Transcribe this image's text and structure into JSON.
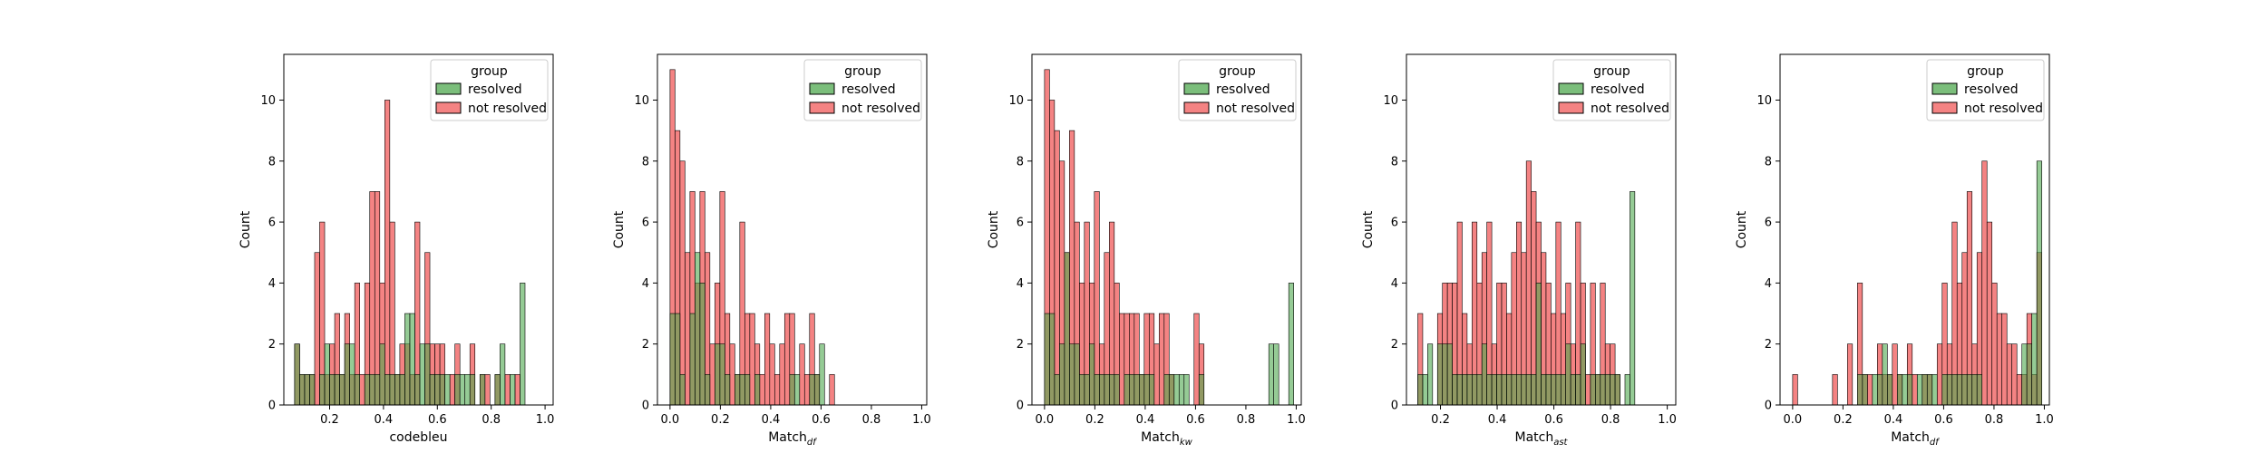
{
  "figure": {
    "legend_title": "group",
    "legend_entries": [
      "resolved",
      "not resolved"
    ],
    "colors": {
      "resolved": "#4fa84f",
      "not_resolved": "#f05a5a",
      "overlap": "#6b6a1c"
    }
  },
  "chart_data": [
    {
      "type": "bar",
      "xlabel": "codebleu",
      "ylabel": "Count",
      "xlim": [
        0.03,
        1.03
      ],
      "ylim": [
        0,
        11.5
      ],
      "xticks": [
        "0.2",
        "0.4",
        "0.6",
        "0.8",
        "1.0"
      ],
      "xtick_values": [
        0.2,
        0.4,
        0.6,
        0.8,
        1.0
      ],
      "yticks": [
        "0",
        "2",
        "4",
        "6",
        "8",
        "10"
      ],
      "bin_start": 0.07,
      "bin_width": 0.0186,
      "series": [
        {
          "name": "resolved",
          "values": [
            2,
            1,
            1,
            1,
            0,
            1,
            2,
            1,
            1,
            1,
            2,
            2,
            1,
            0,
            1,
            1,
            1,
            2,
            1,
            1,
            1,
            1,
            3,
            3,
            1,
            2,
            2,
            1,
            1,
            1,
            1,
            0,
            1,
            1,
            1,
            1,
            0,
            1,
            0,
            0,
            1,
            2,
            0,
            1,
            0,
            4,
            0,
            0
          ]
        },
        {
          "name": "not resolved",
          "values": [
            2,
            1,
            1,
            1,
            5,
            6,
            1,
            2,
            3,
            1,
            3,
            1,
            4,
            1,
            4,
            7,
            7,
            4,
            10,
            6,
            1,
            2,
            2,
            1,
            6,
            0,
            5,
            2,
            2,
            2,
            0,
            1,
            2,
            0,
            0,
            2,
            0,
            1,
            1,
            0,
            1,
            0,
            1,
            0,
            1,
            0,
            0,
            0
          ]
        }
      ]
    },
    {
      "type": "bar",
      "xlabel": "Match_df",
      "ylabel": "Count",
      "xlim": [
        -0.05,
        1.02
      ],
      "ylim": [
        0,
        11.5
      ],
      "xticks": [
        "0.0",
        "0.2",
        "0.4",
        "0.6",
        "0.8",
        "1.0"
      ],
      "xtick_values": [
        0.0,
        0.2,
        0.4,
        0.6,
        0.8,
        1.0
      ],
      "yticks": [
        "0",
        "2",
        "4",
        "6",
        "8",
        "10"
      ],
      "bin_start": 0.0,
      "bin_width": 0.0198,
      "series": [
        {
          "name": "resolved",
          "values": [
            3,
            3,
            1,
            0,
            3,
            5,
            4,
            1,
            0,
            2,
            2,
            1,
            0,
            1,
            1,
            1,
            0,
            1,
            0,
            0,
            0,
            0,
            0,
            0,
            1,
            1,
            0,
            0,
            1,
            1,
            2,
            0,
            0,
            0,
            0,
            0,
            0,
            0,
            0,
            0,
            0,
            0,
            0,
            0,
            0,
            0,
            0,
            0,
            0,
            0
          ]
        },
        {
          "name": "not resolved",
          "values": [
            11,
            9,
            8,
            5,
            7,
            4,
            7,
            5,
            2,
            4,
            7,
            3,
            2,
            1,
            6,
            3,
            3,
            2,
            1,
            3,
            2,
            1,
            2,
            3,
            3,
            0,
            2,
            1,
            3,
            1,
            0,
            0,
            1,
            0,
            0,
            0,
            0,
            0,
            0,
            0,
            0,
            0,
            0,
            0,
            0,
            0,
            0,
            0,
            0,
            0
          ]
        }
      ]
    },
    {
      "type": "bar",
      "xlabel": "Match_kw",
      "ylabel": "Count",
      "xlim": [
        -0.05,
        1.02
      ],
      "ylim": [
        0,
        11.5
      ],
      "xticks": [
        "0.0",
        "0.2",
        "0.4",
        "0.6",
        "0.8",
        "1.0"
      ],
      "xtick_values": [
        0.0,
        0.2,
        0.4,
        0.6,
        0.8,
        1.0
      ],
      "yticks": [
        "0",
        "2",
        "4",
        "6",
        "8",
        "10"
      ],
      "bin_start": 0.0,
      "bin_width": 0.0198,
      "series": [
        {
          "name": "resolved",
          "values": [
            3,
            3,
            1,
            2,
            5,
            2,
            2,
            1,
            1,
            2,
            1,
            1,
            1,
            1,
            1,
            0,
            1,
            1,
            1,
            1,
            1,
            1,
            0,
            0,
            1,
            1,
            1,
            1,
            1,
            0,
            0,
            1,
            0,
            0,
            0,
            0,
            0,
            0,
            0,
            0,
            0,
            0,
            0,
            0,
            0,
            2,
            2,
            0,
            0,
            4
          ]
        },
        {
          "name": "not resolved",
          "values": [
            11,
            10,
            9,
            8,
            5,
            9,
            6,
            4,
            6,
            4,
            7,
            2,
            5,
            6,
            4,
            3,
            3,
            3,
            3,
            1,
            3,
            3,
            2,
            3,
            3,
            1,
            0,
            0,
            0,
            0,
            3,
            2,
            0,
            0,
            0,
            0,
            0,
            0,
            0,
            0,
            0,
            0,
            0,
            0,
            0,
            0,
            0,
            0,
            0,
            0
          ]
        }
      ]
    },
    {
      "type": "bar",
      "xlabel": "Match_ast",
      "ylabel": "Count",
      "xlim": [
        0.08,
        1.03
      ],
      "ylim": [
        0,
        11.5
      ],
      "xticks": [
        "0.2",
        "0.4",
        "0.6",
        "0.8",
        "1.0"
      ],
      "xtick_values": [
        0.2,
        0.4,
        0.6,
        0.8,
        1.0
      ],
      "yticks": [
        "0",
        "2",
        "4",
        "6",
        "8",
        "10"
      ],
      "bin_start": 0.12,
      "bin_width": 0.0174,
      "series": [
        {
          "name": "resolved",
          "values": [
            1,
            1,
            2,
            0,
            2,
            2,
            2,
            1,
            1,
            1,
            1,
            1,
            1,
            2,
            1,
            1,
            1,
            1,
            1,
            1,
            1,
            1,
            1,
            1,
            4,
            1,
            1,
            1,
            1,
            1,
            2,
            1,
            1,
            2,
            0,
            1,
            1,
            1,
            1,
            1,
            1,
            0,
            1,
            7
          ]
        },
        {
          "name": "not resolved",
          "values": [
            3,
            0,
            0,
            0,
            3,
            4,
            4,
            4,
            6,
            3,
            2,
            6,
            4,
            5,
            6,
            2,
            4,
            4,
            3,
            5,
            6,
            5,
            8,
            7,
            6,
            5,
            4,
            3,
            6,
            3,
            4,
            2,
            6,
            4,
            1,
            4,
            1,
            4,
            2,
            2,
            1,
            0,
            0,
            0
          ]
        }
      ]
    },
    {
      "type": "bar",
      "xlabel": "Match_df",
      "ylabel": "Count",
      "xlim": [
        -0.05,
        1.02
      ],
      "ylim": [
        0,
        11.5
      ],
      "xticks": [
        "0.0",
        "0.2",
        "0.4",
        "0.6",
        "0.8",
        "1.0"
      ],
      "xtick_values": [
        0.0,
        0.2,
        0.4,
        0.6,
        0.8,
        1.0
      ],
      "yticks": [
        "0",
        "2",
        "4",
        "6",
        "8",
        "10"
      ],
      "bin_start": 0.0,
      "bin_width": 0.0198,
      "series": [
        {
          "name": "resolved",
          "values": [
            0,
            0,
            0,
            0,
            0,
            0,
            0,
            0,
            0,
            0,
            0,
            0,
            0,
            1,
            1,
            0,
            1,
            1,
            2,
            1,
            0,
            1,
            1,
            1,
            0,
            1,
            1,
            1,
            1,
            0,
            1,
            1,
            1,
            1,
            1,
            1,
            1,
            1,
            0,
            0,
            0,
            0,
            0,
            0,
            0,
            0,
            2,
            2,
            3,
            8
          ]
        },
        {
          "name": "not resolved",
          "values": [
            1,
            0,
            0,
            0,
            0,
            0,
            0,
            0,
            1,
            0,
            0,
            2,
            0,
            4,
            1,
            1,
            0,
            2,
            1,
            1,
            2,
            1,
            0,
            2,
            1,
            0,
            1,
            1,
            0,
            2,
            4,
            2,
            6,
            4,
            5,
            7,
            2,
            5,
            8,
            6,
            4,
            3,
            3,
            2,
            2,
            1,
            1,
            3,
            1,
            5
          ]
        }
      ]
    }
  ]
}
